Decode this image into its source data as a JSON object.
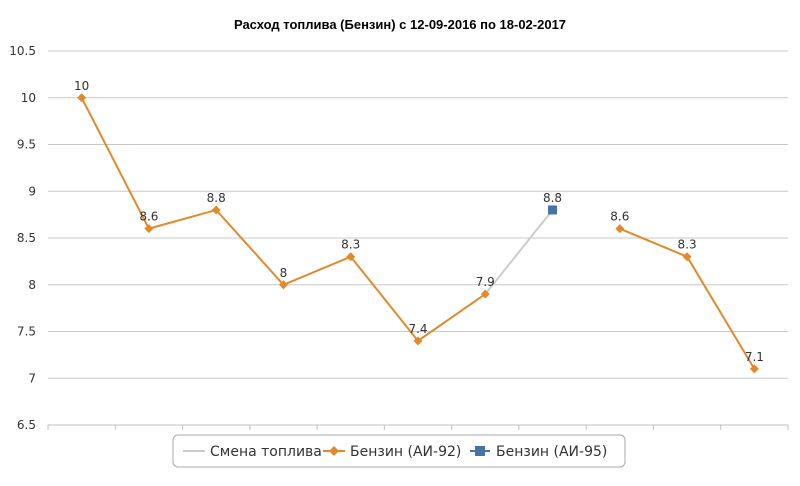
{
  "chart_data": {
    "type": "line",
    "title": "Расход топлива (Бензин) с 12-09-2016 по 18-02-2017",
    "ylim": [
      6.5,
      10.5
    ],
    "yticks": [
      "10.5",
      "10",
      "9.5",
      "9",
      "8.5",
      "8",
      "7.5",
      "7",
      "6.5"
    ],
    "ytick_values": [
      10.5,
      10,
      9.5,
      9,
      8.5,
      8,
      7.5,
      7,
      6.5
    ],
    "grid": true,
    "legend_position": "bottom",
    "values": [
      10,
      8.6,
      8.8,
      8,
      8.3,
      7.4,
      7.9,
      8.8,
      8.6,
      8.3,
      7.1
    ],
    "labels": [
      "10",
      "8.6",
      "8.8",
      "8",
      "8.3",
      "7.4",
      "7.9",
      "8.8",
      "8.6",
      "8.3",
      "7.1"
    ],
    "series": [
      {
        "name": "Смена топлива",
        "color": "#cccccc",
        "marker": "none",
        "segment": [
          6,
          7
        ]
      },
      {
        "name": "Бензин (АИ-92)",
        "color": "#e08a2e",
        "marker": "diamond",
        "points": [
          0,
          1,
          2,
          3,
          4,
          5,
          6,
          8,
          9,
          10
        ]
      },
      {
        "name": "Бензин (АИ-95)",
        "color": "#4572a7",
        "marker": "square",
        "points": [
          7
        ]
      }
    ]
  }
}
